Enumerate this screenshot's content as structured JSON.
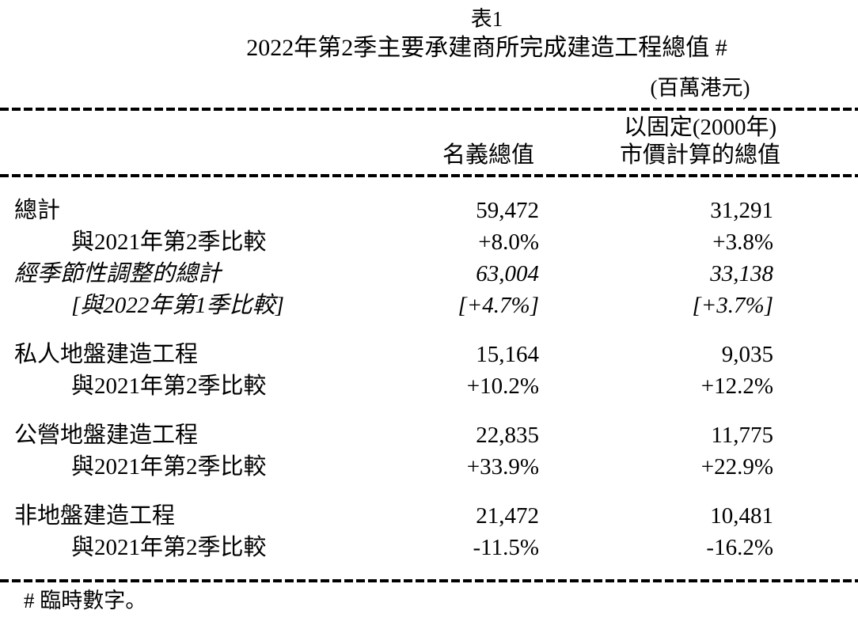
{
  "colors": {
    "background": "#ffffff",
    "text": "#000000"
  },
  "table": {
    "title": "表1",
    "subtitle": "2022年第2季主要承建商所完成建造工程總值  #",
    "unit_note": "(百萬港元)",
    "columns": {
      "nominal": "名義總值",
      "constant_line1": "以固定(2000年)",
      "constant_line2": "市價計算的總值"
    },
    "rows": [
      {
        "label": "總計",
        "indent": 0,
        "italic": false,
        "section_start": false,
        "nominal": "59,472",
        "constant": "31,291"
      },
      {
        "label": "與2021年第2季比較",
        "indent": 1,
        "italic": false,
        "section_start": false,
        "nominal": "+8.0%",
        "constant": "+3.8%"
      },
      {
        "label": "經季節性調整的總計",
        "indent": 0,
        "italic": true,
        "section_start": false,
        "nominal": "63,004",
        "constant": "33,138"
      },
      {
        "label": "[與2022年第1季比較]",
        "indent": 1,
        "italic": true,
        "section_start": false,
        "nominal": "[+4.7%]",
        "constant": "[+3.7%]"
      },
      {
        "label": "私人地盤建造工程",
        "indent": 0,
        "italic": false,
        "section_start": true,
        "nominal": "15,164",
        "constant": "9,035"
      },
      {
        "label": "與2021年第2季比較",
        "indent": 1,
        "italic": false,
        "section_start": false,
        "nominal": "+10.2%",
        "constant": "+12.2%"
      },
      {
        "label": "公營地盤建造工程",
        "indent": 0,
        "italic": false,
        "section_start": true,
        "nominal": "22,835",
        "constant": "11,775"
      },
      {
        "label": "與2021年第2季比較",
        "indent": 1,
        "italic": false,
        "section_start": false,
        "nominal": "+33.9%",
        "constant": "+22.9%"
      },
      {
        "label": "非地盤建造工程",
        "indent": 0,
        "italic": false,
        "section_start": true,
        "nominal": "21,472",
        "constant": "10,481"
      },
      {
        "label": "與2021年第2季比較",
        "indent": 1,
        "italic": false,
        "section_start": false,
        "nominal": "-11.5%",
        "constant": "-16.2%"
      }
    ],
    "footnote": "#  臨時數字。"
  }
}
